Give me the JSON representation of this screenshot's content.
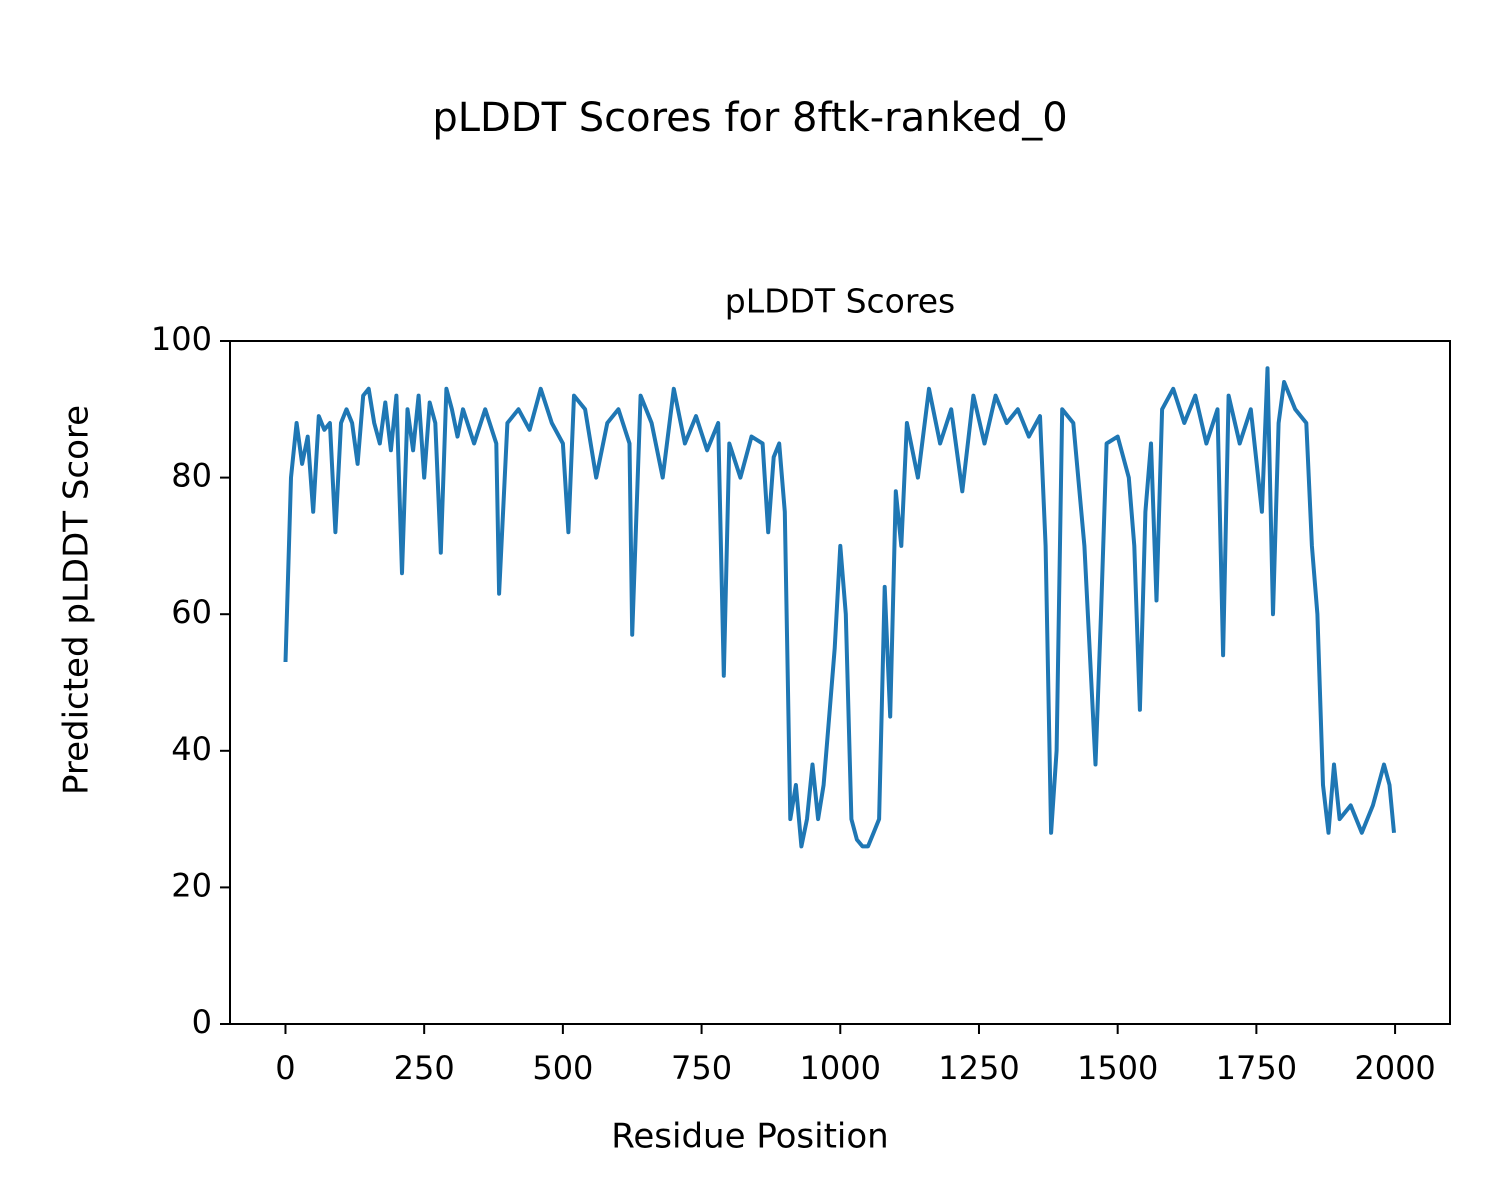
{
  "chart_data": {
    "type": "line",
    "title": "pLDDT Scores for 8ftk-ranked_0",
    "subtitle": "pLDDT Scores",
    "x_label": "Residue Position",
    "y_label": "Predicted pLDDT Score",
    "x": [
      0,
      10,
      20,
      30,
      40,
      50,
      60,
      70,
      80,
      90,
      100,
      110,
      120,
      130,
      140,
      150,
      160,
      170,
      180,
      190,
      200,
      210,
      220,
      230,
      240,
      250,
      260,
      270,
      280,
      290,
      300,
      310,
      320,
      340,
      360,
      380,
      385,
      400,
      420,
      440,
      460,
      480,
      500,
      510,
      520,
      540,
      560,
      580,
      600,
      620,
      625,
      640,
      660,
      680,
      700,
      720,
      740,
      760,
      780,
      790,
      800,
      820,
      840,
      860,
      870,
      880,
      890,
      900,
      910,
      920,
      930,
      940,
      950,
      960,
      970,
      980,
      990,
      1000,
      1010,
      1020,
      1030,
      1040,
      1050,
      1060,
      1070,
      1080,
      1090,
      1100,
      1110,
      1120,
      1140,
      1160,
      1180,
      1200,
      1220,
      1240,
      1260,
      1280,
      1300,
      1320,
      1340,
      1360,
      1370,
      1380,
      1390,
      1400,
      1420,
      1440,
      1460,
      1470,
      1480,
      1500,
      1520,
      1530,
      1540,
      1550,
      1560,
      1570,
      1580,
      1600,
      1620,
      1640,
      1660,
      1680,
      1690,
      1700,
      1720,
      1740,
      1760,
      1770,
      1780,
      1790,
      1800,
      1820,
      1840,
      1850,
      1860,
      1870,
      1880,
      1890,
      1900,
      1920,
      1940,
      1960,
      1980,
      1990,
      1998
    ],
    "series": [
      {
        "name": "pLDDT",
        "color": "#1f77b4",
        "values": [
          53,
          80,
          88,
          82,
          86,
          75,
          89,
          87,
          88,
          72,
          88,
          90,
          88,
          82,
          92,
          93,
          88,
          85,
          91,
          84,
          92,
          66,
          90,
          84,
          92,
          80,
          91,
          88,
          69,
          93,
          90,
          86,
          90,
          85,
          90,
          85,
          63,
          88,
          90,
          87,
          93,
          88,
          85,
          72,
          92,
          90,
          80,
          88,
          90,
          85,
          57,
          92,
          88,
          80,
          93,
          85,
          89,
          84,
          88,
          51,
          85,
          80,
          86,
          85,
          72,
          83,
          85,
          75,
          30,
          35,
          26,
          30,
          38,
          30,
          35,
          45,
          55,
          70,
          60,
          30,
          27,
          26,
          26,
          28,
          30,
          64,
          45,
          78,
          70,
          88,
          80,
          93,
          85,
          90,
          78,
          92,
          85,
          92,
          88,
          90,
          86,
          89,
          70,
          28,
          40,
          90,
          88,
          70,
          38,
          60,
          85,
          86,
          80,
          70,
          46,
          75,
          85,
          62,
          90,
          93,
          88,
          92,
          85,
          90,
          54,
          92,
          85,
          90,
          75,
          96,
          60,
          88,
          94,
          90,
          88,
          70,
          60,
          35,
          28,
          38,
          30,
          32,
          28,
          32,
          38,
          35,
          28
        ]
      }
    ],
    "xlim": [
      -100,
      2099
    ],
    "ylim": [
      0,
      100
    ],
    "xticks": [
      0,
      250,
      500,
      750,
      1000,
      1250,
      1500,
      1750,
      2000
    ],
    "yticks": [
      0,
      20,
      40,
      60,
      80,
      100
    ]
  }
}
